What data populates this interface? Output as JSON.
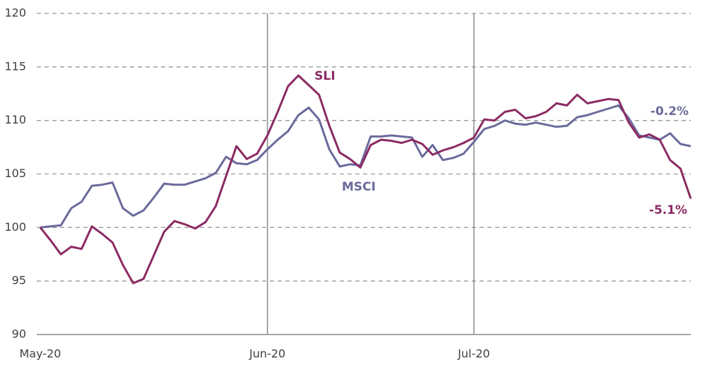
{
  "chart_data": {
    "type": "line",
    "categories": [
      "May-20",
      null,
      null,
      null,
      null,
      null,
      null,
      null,
      null,
      null,
      null,
      null,
      null,
      null,
      null,
      null,
      null,
      null,
      null,
      null,
      null,
      null,
      "Jun-20",
      null,
      null,
      null,
      null,
      null,
      null,
      null,
      null,
      null,
      null,
      null,
      null,
      null,
      null,
      null,
      null,
      null,
      null,
      null,
      "Jul-20",
      null,
      null,
      null,
      null,
      null,
      null,
      null,
      null,
      null,
      null,
      null,
      null,
      null,
      null,
      null,
      null,
      null,
      null,
      null,
      null,
      null
    ],
    "series": [
      {
        "name": "SLI",
        "color": "#8b2b62",
        "values": [
          100,
          98.8,
          97.5,
          98.2,
          98.0,
          100.1,
          99.4,
          98.6,
          96.5,
          94.8,
          95.2,
          97.4,
          99.6,
          100.6,
          100.3,
          99.9,
          100.5,
          102.0,
          104.8,
          107.6,
          106.4,
          106.9,
          108.6,
          110.8,
          113.2,
          114.2,
          113.3,
          112.4,
          109.5,
          107.0,
          106.4,
          105.6,
          107.7,
          108.2,
          108.1,
          107.9,
          108.2,
          107.8,
          106.8,
          107.2,
          107.5,
          107.9,
          108.4,
          110.1,
          110.0,
          110.8,
          111.0,
          110.2,
          110.4,
          110.8,
          111.6,
          111.4,
          112.4,
          111.6,
          111.8,
          112.0,
          111.9,
          109.8,
          108.4,
          108.7,
          108.2,
          106.3,
          105.5,
          102.7
        ]
      },
      {
        "name": "MSCI",
        "color": "#6a6a9c",
        "values": [
          100,
          100.1,
          100.2,
          101.8,
          102.4,
          103.9,
          104.0,
          104.2,
          101.8,
          101.1,
          101.6,
          102.8,
          104.1,
          104.0,
          104.0,
          104.3,
          104.6,
          105.1,
          106.6,
          106.0,
          105.9,
          106.3,
          107.3,
          108.2,
          109.0,
          110.5,
          111.2,
          110.1,
          107.3,
          105.7,
          105.9,
          105.8,
          108.5,
          108.5,
          108.6,
          108.5,
          108.4,
          106.6,
          107.7,
          106.3,
          106.5,
          106.9,
          108.0,
          109.2,
          109.5,
          110.0,
          109.7,
          109.6,
          109.8,
          109.6,
          109.4,
          109.5,
          110.3,
          110.5,
          110.8,
          111.1,
          111.4,
          110.2,
          108.6,
          108.4,
          108.2,
          108.8,
          107.8,
          107.6
        ]
      }
    ],
    "annotations": [
      "SLI",
      "MSCI",
      "-0.2%",
      "-5.1%"
    ],
    "ylim": [
      90,
      120
    ],
    "yticks": [
      90,
      95,
      100,
      105,
      110,
      115,
      120
    ],
    "grid": true
  }
}
